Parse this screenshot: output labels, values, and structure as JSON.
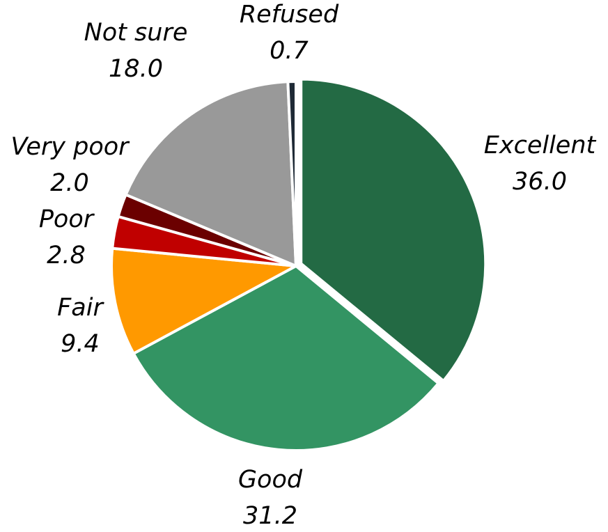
{
  "chart_data": {
    "type": "pie",
    "categories": [
      "Excellent",
      "Good",
      "Fair",
      "Poor",
      "Very poor",
      "Not sure",
      "Refused"
    ],
    "values": [
      36.0,
      31.2,
      9.4,
      2.8,
      2.0,
      18.0,
      0.7
    ],
    "value_labels": [
      "36.0",
      "31.2",
      "9.4",
      "2.8",
      "2.0",
      "18.0",
      "0.7"
    ],
    "colors": [
      "#236a44",
      "#339463",
      "#ff9900",
      "#c00000",
      "#6b0000",
      "#999999",
      "#1f2a36"
    ]
  }
}
